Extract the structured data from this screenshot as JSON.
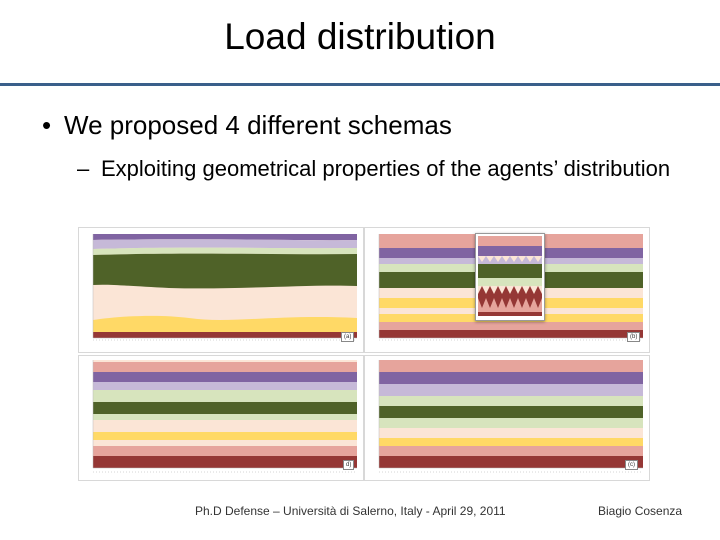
{
  "slide": {
    "title": "Load distribution",
    "bullet1": "We proposed 4 different schemas",
    "bullet2": "Exploiting geometrical properties of the agents’ distribution"
  },
  "figure": {
    "panels": [
      {
        "label": "(a)"
      },
      {
        "label": "(b)"
      },
      {
        "label": "d)"
      },
      {
        "label": "(c)"
      }
    ]
  },
  "footer": {
    "center": "Ph.D Defense – Università di Salerno, Italy - April 29, 2011",
    "right": "Biagio Cosenza"
  },
  "colors": {
    "purple": "#8064a2",
    "lavender": "#c6b9d8",
    "light_green": "#d7e4bd",
    "dark_green": "#4f6228",
    "peach": "#fbe5d6",
    "yellow": "#ffd966",
    "salmon": "#e6a49c",
    "dark_red": "#953735",
    "accent_rule": "#3a5f8a"
  }
}
